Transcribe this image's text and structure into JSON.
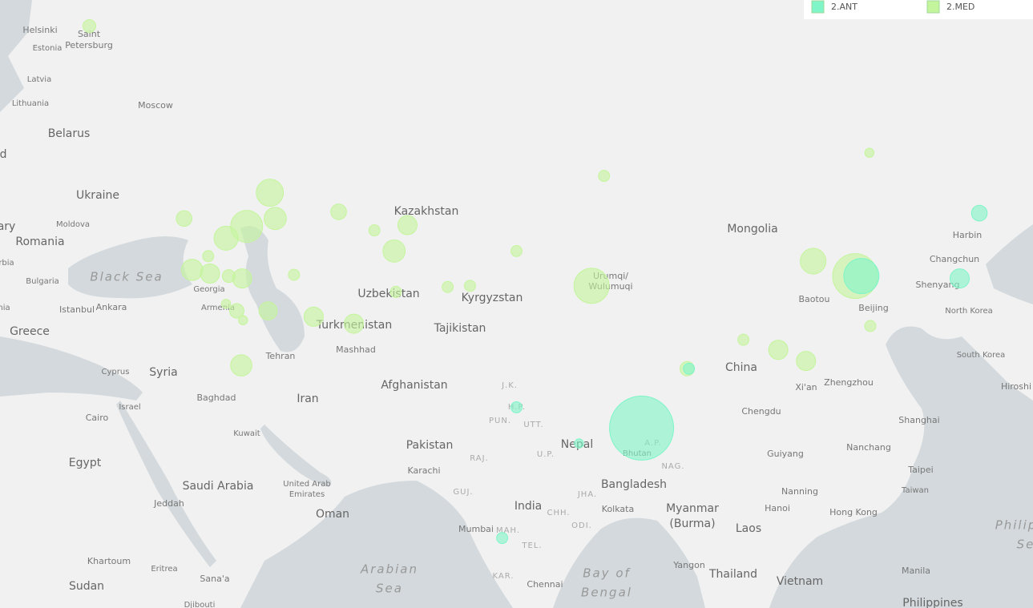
{
  "legend": [
    {
      "name": "2.ANT",
      "color": "#7ff5c8"
    },
    {
      "name": "2.MED",
      "color": "#c4f59c"
    }
  ],
  "labels": [
    "Helsinki",
    "Saint",
    "Petersburg",
    "Estonia",
    "Latvia",
    "Lithuania",
    "Moscow",
    "Belarus",
    "d",
    "Ukraine",
    "ary",
    "Moldova",
    "Romania",
    "rbia",
    "Bulgaria",
    "Black Sea",
    "Georgia",
    "Armenia",
    "nia",
    "Istanbul",
    "Ankara",
    "Greece",
    "Cyprus",
    "Syria",
    "Baghdad",
    "Israel",
    "Cairo",
    "Egypt",
    "Kuwait",
    "Saudi Arabia",
    "Jeddah",
    "United Arab",
    "Emirates",
    "Oman",
    "Khartoum",
    "Eritrea",
    "Sana'a",
    "Sudan",
    "Djibouti",
    "Tehran",
    "Mashhad",
    "Iran",
    "Turkmenistan",
    "Uzbekistan",
    "Kazakhstan",
    "Kyrgyzstan",
    "Tajikistan",
    "Afghanistan",
    "Pakistan",
    "Karachi",
    "Arabian",
    "Sea",
    "Mumbai",
    "India",
    "Chennai",
    "Bay of",
    "Bengal",
    "Nepal",
    "Bhutan",
    "Bangladesh",
    "Kolkata",
    "Myanmar",
    "(Burma)",
    "Yangon",
    "Thailand",
    "Laos",
    "Vietnam",
    "Hanoi",
    "Nanning",
    "Guiyang",
    "Chengdu",
    "China",
    "Xi'an",
    "Zhengzhou",
    "Baotou",
    "Beijing",
    "Mongolia",
    "Urumqi/",
    "Wulumuqi",
    "Harbin",
    "Changchun",
    "Shenyang",
    "North Korea",
    "South Korea",
    "Shanghai",
    "Nanchang",
    "Taipei",
    "Taiwan",
    "Hong Kong",
    "Manila",
    "Philippines",
    "Philip",
    "Se",
    "Hiroshi",
    "J.K.",
    "H.P.",
    "PUN.",
    "UTT.",
    "RAJ.",
    "U.P.",
    "GUJ.",
    "MAH.",
    "TEL.",
    "KAR.",
    "CHH.",
    "ODI.",
    "JHA.",
    "A.P.",
    "NAG."
  ],
  "points": [
    {
      "series": 1,
      "lon": 30.0,
      "lat": 60.4,
      "value": 4
    },
    {
      "series": 1,
      "lon": 50.2,
      "lat": 49.8,
      "value": 18
    },
    {
      "series": 1,
      "lon": 40.6,
      "lat": 47.9,
      "value": 6
    },
    {
      "series": 1,
      "lon": 47.6,
      "lat": 47.3,
      "value": 25
    },
    {
      "series": 1,
      "lon": 50.8,
      "lat": 47.9,
      "value": 12
    },
    {
      "series": 1,
      "lon": 45.3,
      "lat": 46.4,
      "value": 14
    },
    {
      "series": 1,
      "lon": 57.9,
      "lat": 48.4,
      "value": 6
    },
    {
      "series": 1,
      "lon": 65.6,
      "lat": 47.4,
      "value": 9
    },
    {
      "series": 1,
      "lon": 61.9,
      "lat": 47.0,
      "value": 3
    },
    {
      "series": 1,
      "lon": 64.1,
      "lat": 45.4,
      "value": 12
    },
    {
      "series": 1,
      "lon": 43.3,
      "lat": 45.0,
      "value": 3
    },
    {
      "series": 1,
      "lon": 41.5,
      "lat": 43.9,
      "value": 11
    },
    {
      "series": 1,
      "lon": 43.5,
      "lat": 43.6,
      "value": 9
    },
    {
      "series": 1,
      "lon": 45.6,
      "lat": 43.4,
      "value": 4
    },
    {
      "series": 1,
      "lon": 47.1,
      "lat": 43.2,
      "value": 9
    },
    {
      "series": 1,
      "lon": 52.9,
      "lat": 43.5,
      "value": 3
    },
    {
      "series": 1,
      "lon": 50.0,
      "lat": 40.5,
      "value": 8
    },
    {
      "series": 1,
      "lon": 46.5,
      "lat": 40.5,
      "value": 5
    },
    {
      "series": 1,
      "lon": 45.3,
      "lat": 41.1,
      "value": 2
    },
    {
      "series": 1,
      "lon": 47.2,
      "lat": 39.7,
      "value": 2
    },
    {
      "series": 1,
      "lon": 55.1,
      "lat": 40.0,
      "value": 9
    },
    {
      "series": 1,
      "lon": 59.6,
      "lat": 39.4,
      "value": 9
    },
    {
      "series": 1,
      "lon": 47.0,
      "lat": 35.7,
      "value": 11
    },
    {
      "series": 1,
      "lon": 64.3,
      "lat": 42.1,
      "value": 3
    },
    {
      "series": 1,
      "lon": 70.1,
      "lat": 42.5,
      "value": 3
    },
    {
      "series": 1,
      "lon": 72.6,
      "lat": 42.6,
      "value": 3
    },
    {
      "series": 1,
      "lon": 77.8,
      "lat": 45.4,
      "value": 3
    },
    {
      "series": 1,
      "lon": 86.2,
      "lat": 42.6,
      "value": 30
    },
    {
      "series": 1,
      "lon": 87.6,
      "lat": 51.0,
      "value": 3
    },
    {
      "series": 1,
      "lon": 117.3,
      "lat": 52.6,
      "value": 2
    },
    {
      "series": 1,
      "lon": 111.0,
      "lat": 44.6,
      "value": 16
    },
    {
      "series": 1,
      "lon": 103.2,
      "lat": 38.0,
      "value": 3
    },
    {
      "series": 1,
      "lon": 107.1,
      "lat": 37.1,
      "value": 9
    },
    {
      "series": 1,
      "lon": 110.2,
      "lat": 36.1,
      "value": 9
    },
    {
      "series": 1,
      "lon": 117.4,
      "lat": 39.2,
      "value": 3
    },
    {
      "series": 1,
      "lon": 115.7,
      "lat": 43.4,
      "value": 49
    },
    {
      "series": 0,
      "lon": 116.4,
      "lat": 43.4,
      "value": 30
    },
    {
      "series": 1,
      "lon": 96.9,
      "lat": 35.4,
      "value": 5
    },
    {
      "series": 0,
      "lon": 97.1,
      "lat": 35.4,
      "value": 3
    },
    {
      "series": 0,
      "lon": 91.8,
      "lat": 29.8,
      "value": 100
    },
    {
      "series": 0,
      "lon": 129.6,
      "lat": 48.3,
      "value": 6
    },
    {
      "series": 0,
      "lon": 127.4,
      "lat": 43.2,
      "value": 9
    },
    {
      "series": 0,
      "lon": 77.8,
      "lat": 31.8,
      "value": 3
    },
    {
      "series": 0,
      "lon": 84.8,
      "lat": 28.3,
      "value": 2
    },
    {
      "series": 0,
      "lon": 76.2,
      "lat": 18.6,
      "value": 3
    }
  ]
}
